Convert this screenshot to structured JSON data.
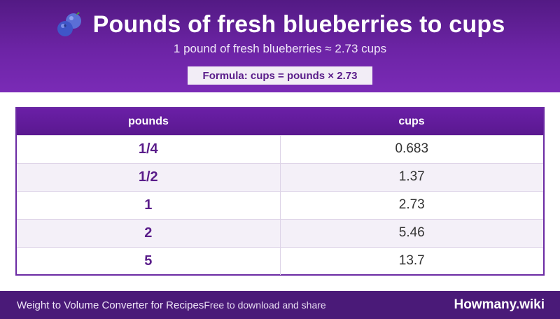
{
  "header": {
    "title": "Pounds of fresh blueberries to cups",
    "icon": "blueberry-icon",
    "subtitle": "1 pound of fresh blueberries ≈ 2.73 cups",
    "formula": "Formula: cups = pounds × 2.73"
  },
  "table": {
    "columns": [
      "pounds",
      "cups"
    ],
    "rows": [
      [
        "1/4",
        "0.683"
      ],
      [
        "1/2",
        "1.37"
      ],
      [
        "1",
        "2.73"
      ],
      [
        "2",
        "5.46"
      ],
      [
        "5",
        "13.7"
      ]
    ]
  },
  "footer": {
    "left": "Weight to Volume Converter for Recipes",
    "middle": "Free to download and share",
    "brand": "Howmany.wiki"
  },
  "colors": {
    "header_purple": "#6d24a6",
    "accent_text": "#5a1d8a",
    "footer_purple": "#4a1a78"
  }
}
